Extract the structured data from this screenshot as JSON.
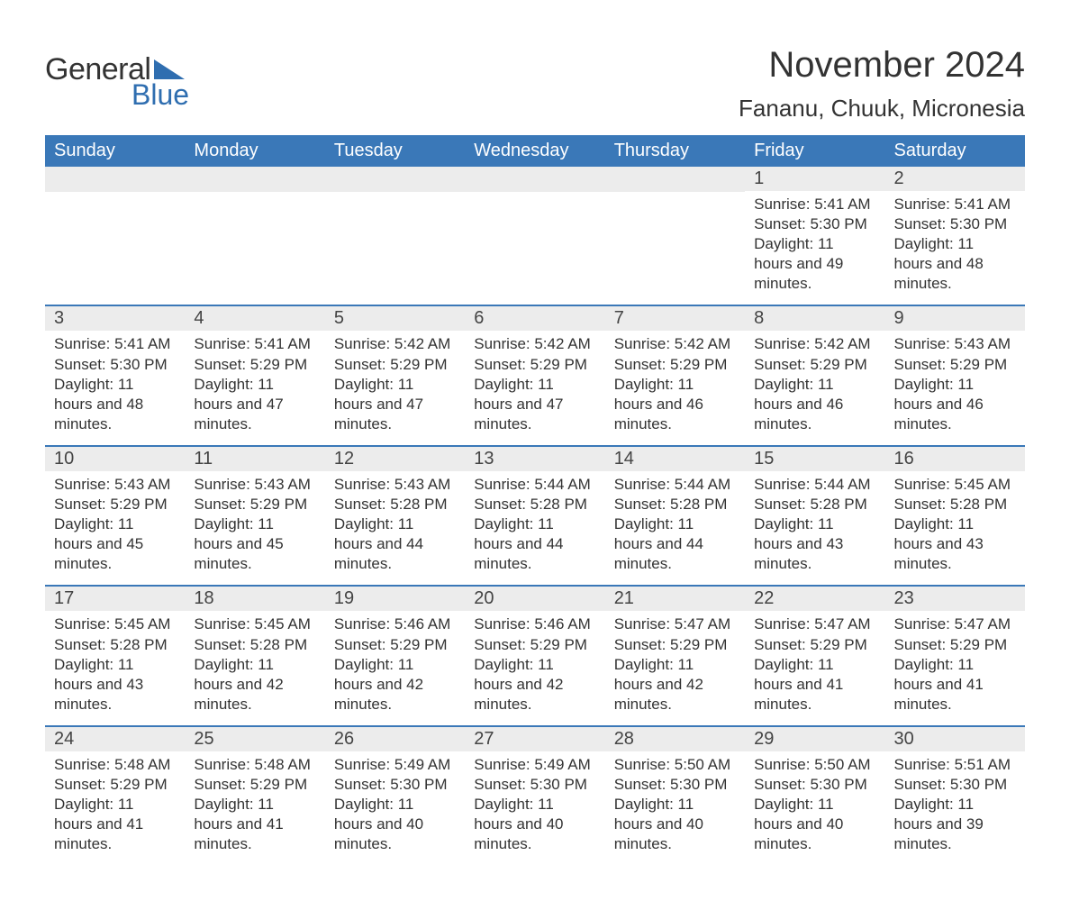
{
  "brand": {
    "word1": "General",
    "word2": "Blue",
    "triangle_color": "#2f6eb0"
  },
  "title": "November 2024",
  "location": "Fananu, Chuuk, Micronesia",
  "colors": {
    "header_bg": "#3a78b8",
    "header_text": "#ffffff",
    "daynum_bg": "#ececec",
    "text": "#333333",
    "rule": "#3a78b8",
    "background": "#ffffff"
  },
  "typography": {
    "title_fontsize": 40,
    "location_fontsize": 26,
    "header_fontsize": 20,
    "daynum_fontsize": 20,
    "body_fontsize": 17
  },
  "day_headers": [
    "Sunday",
    "Monday",
    "Tuesday",
    "Wednesday",
    "Thursday",
    "Friday",
    "Saturday"
  ],
  "weeks": [
    [
      null,
      null,
      null,
      null,
      null,
      {
        "n": "1",
        "sunrise": "Sunrise: 5:41 AM",
        "sunset": "Sunset: 5:30 PM",
        "daylight": "Daylight: 11 hours and 49 minutes."
      },
      {
        "n": "2",
        "sunrise": "Sunrise: 5:41 AM",
        "sunset": "Sunset: 5:30 PM",
        "daylight": "Daylight: 11 hours and 48 minutes."
      }
    ],
    [
      {
        "n": "3",
        "sunrise": "Sunrise: 5:41 AM",
        "sunset": "Sunset: 5:30 PM",
        "daylight": "Daylight: 11 hours and 48 minutes."
      },
      {
        "n": "4",
        "sunrise": "Sunrise: 5:41 AM",
        "sunset": "Sunset: 5:29 PM",
        "daylight": "Daylight: 11 hours and 47 minutes."
      },
      {
        "n": "5",
        "sunrise": "Sunrise: 5:42 AM",
        "sunset": "Sunset: 5:29 PM",
        "daylight": "Daylight: 11 hours and 47 minutes."
      },
      {
        "n": "6",
        "sunrise": "Sunrise: 5:42 AM",
        "sunset": "Sunset: 5:29 PM",
        "daylight": "Daylight: 11 hours and 47 minutes."
      },
      {
        "n": "7",
        "sunrise": "Sunrise: 5:42 AM",
        "sunset": "Sunset: 5:29 PM",
        "daylight": "Daylight: 11 hours and 46 minutes."
      },
      {
        "n": "8",
        "sunrise": "Sunrise: 5:42 AM",
        "sunset": "Sunset: 5:29 PM",
        "daylight": "Daylight: 11 hours and 46 minutes."
      },
      {
        "n": "9",
        "sunrise": "Sunrise: 5:43 AM",
        "sunset": "Sunset: 5:29 PM",
        "daylight": "Daylight: 11 hours and 46 minutes."
      }
    ],
    [
      {
        "n": "10",
        "sunrise": "Sunrise: 5:43 AM",
        "sunset": "Sunset: 5:29 PM",
        "daylight": "Daylight: 11 hours and 45 minutes."
      },
      {
        "n": "11",
        "sunrise": "Sunrise: 5:43 AM",
        "sunset": "Sunset: 5:29 PM",
        "daylight": "Daylight: 11 hours and 45 minutes."
      },
      {
        "n": "12",
        "sunrise": "Sunrise: 5:43 AM",
        "sunset": "Sunset: 5:28 PM",
        "daylight": "Daylight: 11 hours and 44 minutes."
      },
      {
        "n": "13",
        "sunrise": "Sunrise: 5:44 AM",
        "sunset": "Sunset: 5:28 PM",
        "daylight": "Daylight: 11 hours and 44 minutes."
      },
      {
        "n": "14",
        "sunrise": "Sunrise: 5:44 AM",
        "sunset": "Sunset: 5:28 PM",
        "daylight": "Daylight: 11 hours and 44 minutes."
      },
      {
        "n": "15",
        "sunrise": "Sunrise: 5:44 AM",
        "sunset": "Sunset: 5:28 PM",
        "daylight": "Daylight: 11 hours and 43 minutes."
      },
      {
        "n": "16",
        "sunrise": "Sunrise: 5:45 AM",
        "sunset": "Sunset: 5:28 PM",
        "daylight": "Daylight: 11 hours and 43 minutes."
      }
    ],
    [
      {
        "n": "17",
        "sunrise": "Sunrise: 5:45 AM",
        "sunset": "Sunset: 5:28 PM",
        "daylight": "Daylight: 11 hours and 43 minutes."
      },
      {
        "n": "18",
        "sunrise": "Sunrise: 5:45 AM",
        "sunset": "Sunset: 5:28 PM",
        "daylight": "Daylight: 11 hours and 42 minutes."
      },
      {
        "n": "19",
        "sunrise": "Sunrise: 5:46 AM",
        "sunset": "Sunset: 5:29 PM",
        "daylight": "Daylight: 11 hours and 42 minutes."
      },
      {
        "n": "20",
        "sunrise": "Sunrise: 5:46 AM",
        "sunset": "Sunset: 5:29 PM",
        "daylight": "Daylight: 11 hours and 42 minutes."
      },
      {
        "n": "21",
        "sunrise": "Sunrise: 5:47 AM",
        "sunset": "Sunset: 5:29 PM",
        "daylight": "Daylight: 11 hours and 42 minutes."
      },
      {
        "n": "22",
        "sunrise": "Sunrise: 5:47 AM",
        "sunset": "Sunset: 5:29 PM",
        "daylight": "Daylight: 11 hours and 41 minutes."
      },
      {
        "n": "23",
        "sunrise": "Sunrise: 5:47 AM",
        "sunset": "Sunset: 5:29 PM",
        "daylight": "Daylight: 11 hours and 41 minutes."
      }
    ],
    [
      {
        "n": "24",
        "sunrise": "Sunrise: 5:48 AM",
        "sunset": "Sunset: 5:29 PM",
        "daylight": "Daylight: 11 hours and 41 minutes."
      },
      {
        "n": "25",
        "sunrise": "Sunrise: 5:48 AM",
        "sunset": "Sunset: 5:29 PM",
        "daylight": "Daylight: 11 hours and 41 minutes."
      },
      {
        "n": "26",
        "sunrise": "Sunrise: 5:49 AM",
        "sunset": "Sunset: 5:30 PM",
        "daylight": "Daylight: 11 hours and 40 minutes."
      },
      {
        "n": "27",
        "sunrise": "Sunrise: 5:49 AM",
        "sunset": "Sunset: 5:30 PM",
        "daylight": "Daylight: 11 hours and 40 minutes."
      },
      {
        "n": "28",
        "sunrise": "Sunrise: 5:50 AM",
        "sunset": "Sunset: 5:30 PM",
        "daylight": "Daylight: 11 hours and 40 minutes."
      },
      {
        "n": "29",
        "sunrise": "Sunrise: 5:50 AM",
        "sunset": "Sunset: 5:30 PM",
        "daylight": "Daylight: 11 hours and 40 minutes."
      },
      {
        "n": "30",
        "sunrise": "Sunrise: 5:51 AM",
        "sunset": "Sunset: 5:30 PM",
        "daylight": "Daylight: 11 hours and 39 minutes."
      }
    ]
  ]
}
